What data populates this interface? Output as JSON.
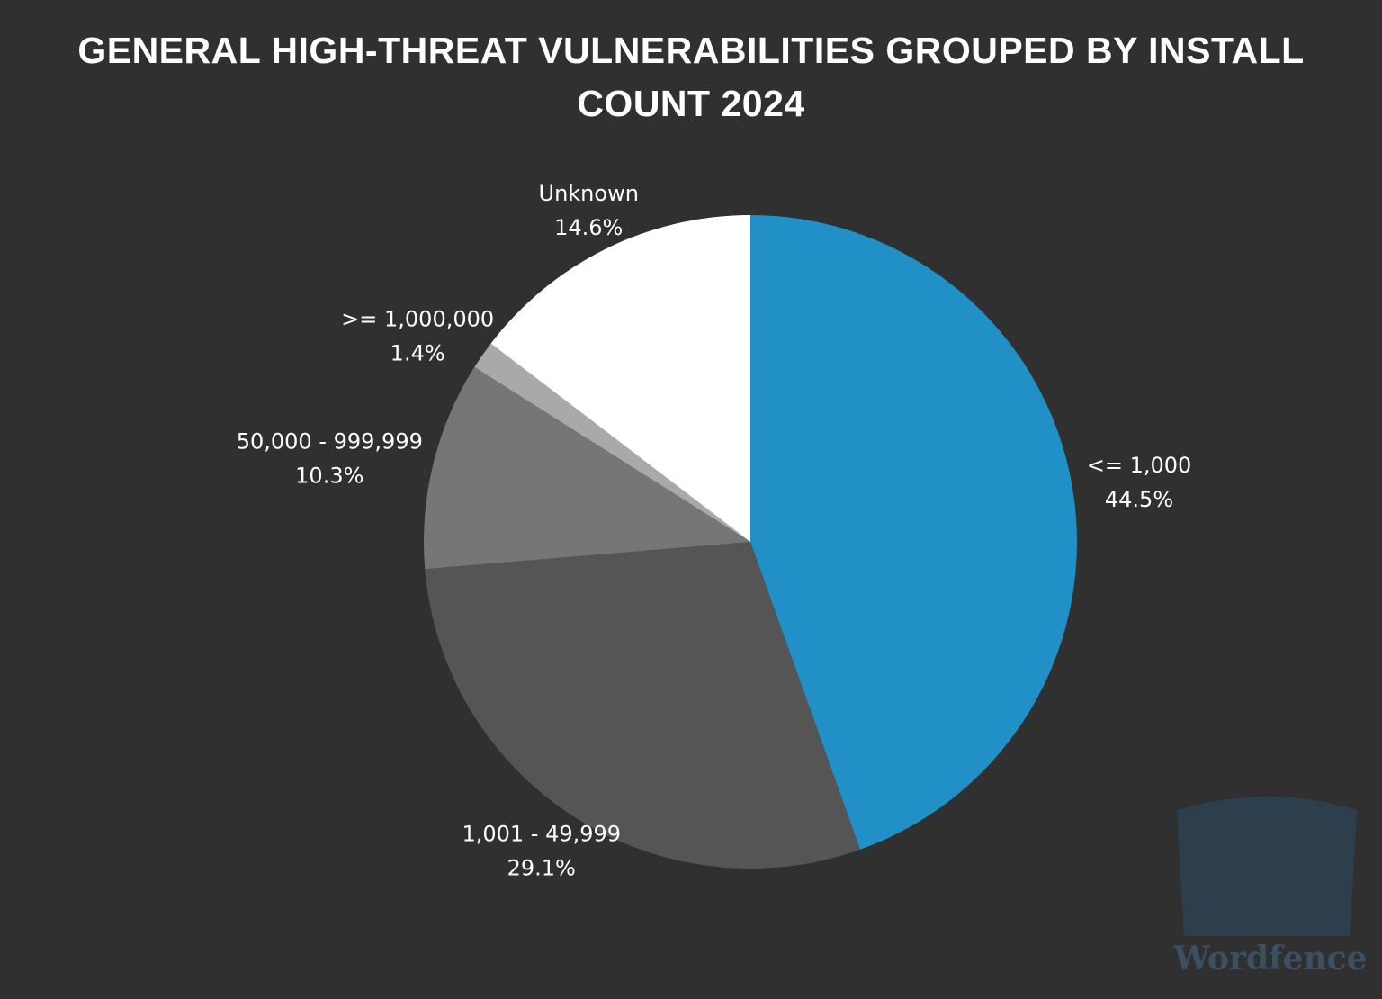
{
  "chart_data": {
    "type": "pie",
    "title": "GENERAL HIGH-THREAT VULNERABILITIES GROUPED BY INSTALL COUNT 2024",
    "categories": [
      "<= 1,000",
      "1,001 - 49,999",
      "50,000 - 999,999",
      ">= 1,000,000",
      "Unknown"
    ],
    "values": [
      44.5,
      29.1,
      10.3,
      1.4,
      14.6
    ],
    "value_labels": [
      "44.5%",
      "29.1%",
      "10.3%",
      "1.4%",
      "14.6%"
    ],
    "colors": [
      "#2190c6",
      "#555555",
      "#767676",
      "#a9a9a9",
      "#ffffff"
    ],
    "start_angle": "top",
    "direction": "clockwise",
    "watermark": "Wordfence"
  }
}
